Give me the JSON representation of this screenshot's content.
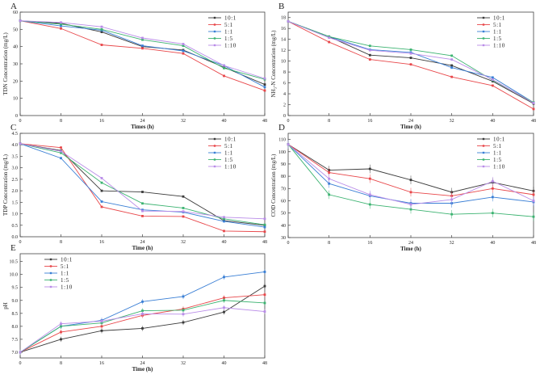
{
  "series_names": [
    "10:1",
    "5:1",
    "1:1",
    "1:5",
    "1:10"
  ],
  "colors": [
    "#3a3a3a",
    "#e8474a",
    "#3a7fd5",
    "#3cb371",
    "#b98ce8"
  ],
  "chart_data": [
    {
      "panel": "A",
      "type": "line",
      "xlabel": "Times (h)",
      "ylabel": "TDN Concentration (mg/L)",
      "x": [
        0,
        8,
        16,
        24,
        32,
        40,
        48
      ],
      "xlim": [
        0,
        48
      ],
      "ylim": [
        0,
        60
      ],
      "yticks": [
        0,
        10,
        20,
        30,
        40,
        50,
        60
      ],
      "ytick_labels": [
        "0",
        "10",
        "20",
        "30",
        "40",
        "50",
        "60"
      ],
      "legend": "top-right",
      "error_bar": 0.6,
      "series": [
        {
          "name": "10:1",
          "values": [
            55,
            53.5,
            48.5,
            40,
            38,
            28,
            18
          ]
        },
        {
          "name": "5:1",
          "values": [
            55,
            50.5,
            41,
            39,
            36,
            23,
            14.5
          ]
        },
        {
          "name": "1:1",
          "values": [
            55,
            52,
            49.5,
            40.5,
            37.5,
            29,
            16.5
          ]
        },
        {
          "name": "1:5",
          "values": [
            55,
            53,
            50,
            44,
            40.5,
            27.5,
            21
          ]
        },
        {
          "name": "1:10",
          "values": [
            55,
            54,
            51.5,
            45,
            41.5,
            29,
            21.5
          ]
        }
      ]
    },
    {
      "panel": "B",
      "type": "line",
      "xlabel": "Time (h)",
      "ylabel": "NH₃-N Concentration (mg/L)",
      "x": [
        0,
        8,
        16,
        24,
        32,
        40,
        48
      ],
      "xlim": [
        0,
        48
      ],
      "ylim": [
        0,
        19
      ],
      "yticks": [
        0,
        2,
        4,
        6,
        8,
        10,
        12,
        14,
        16,
        18
      ],
      "ytick_labels": [
        "0",
        "2",
        "4",
        "6",
        "8",
        "10",
        "12",
        "14",
        "16",
        "18"
      ],
      "legend": "top-right",
      "error_bar": 0.2,
      "series": [
        {
          "name": "10:1",
          "values": [
            17.3,
            14.5,
            11.1,
            10.6,
            9.2,
            6.3,
            2.2
          ]
        },
        {
          "name": "5:1",
          "values": [
            17.3,
            13.5,
            10.3,
            9.4,
            7.1,
            5.5,
            1.2
          ]
        },
        {
          "name": "1:1",
          "values": [
            17.3,
            14.5,
            12.1,
            11.6,
            8.8,
            7.0,
            2.4
          ]
        },
        {
          "name": "1:5",
          "values": [
            17.3,
            14.5,
            12.8,
            12.1,
            11.0,
            6.5,
            2.4
          ]
        },
        {
          "name": "1:10",
          "values": [
            17.3,
            14.3,
            12.0,
            11.4,
            10.3,
            6.6,
            2.3
          ]
        }
      ]
    },
    {
      "panel": "C",
      "type": "line",
      "xlabel": "Time (h)",
      "ylabel": "TDP Concentration (mg/L)",
      "x": [
        0,
        8,
        16,
        24,
        32,
        40,
        48
      ],
      "xlim": [
        0,
        48
      ],
      "ylim": [
        0,
        4.5
      ],
      "yticks": [
        0,
        0.5,
        1,
        1.5,
        2,
        2.5,
        3,
        3.5,
        4,
        4.5
      ],
      "ytick_labels": [
        "0.0",
        "0.5",
        "1.0",
        "1.5",
        "2.0",
        "2.5",
        "3.0",
        "3.5",
        "4.0",
        "4.5"
      ],
      "legend": "top-right",
      "error_bar": 0.04,
      "series": [
        {
          "name": "10:1",
          "values": [
            4.05,
            3.75,
            2.0,
            1.95,
            1.75,
            0.7,
            0.5
          ]
        },
        {
          "name": "5:1",
          "values": [
            4.05,
            3.88,
            1.3,
            0.9,
            0.88,
            0.25,
            0.22
          ]
        },
        {
          "name": "1:1",
          "values": [
            4.05,
            3.42,
            1.53,
            1.17,
            1.07,
            0.67,
            0.42
          ]
        },
        {
          "name": "1:5",
          "values": [
            4.05,
            3.65,
            2.35,
            1.45,
            1.25,
            0.78,
            0.52
          ]
        },
        {
          "name": "1:10",
          "values": [
            4.05,
            3.72,
            2.55,
            1.12,
            1.1,
            0.85,
            0.78
          ]
        }
      ]
    },
    {
      "panel": "D",
      "type": "line",
      "xlabel": "Time (h)",
      "ylabel": "COD Concentration (mg/L)",
      "x": [
        0,
        8,
        16,
        24,
        32,
        40,
        48
      ],
      "xlim": [
        0,
        48
      ],
      "ylim": [
        30,
        115
      ],
      "yticks": [
        30,
        40,
        50,
        60,
        70,
        80,
        90,
        100,
        110
      ],
      "ytick_labels": [
        "30",
        "40",
        "50",
        "60",
        "70",
        "80",
        "90",
        "100",
        "110"
      ],
      "legend": "top-right",
      "error_bar": 3.5,
      "series": [
        {
          "name": "10:1",
          "values": [
            106,
            85,
            86,
            77,
            67,
            75,
            68
          ]
        },
        {
          "name": "5:1",
          "values": [
            106,
            83,
            78,
            67,
            64,
            70,
            65
          ]
        },
        {
          "name": "1:1",
          "values": [
            106,
            74,
            64,
            58,
            58,
            63,
            59
          ]
        },
        {
          "name": "1:5",
          "values": [
            106,
            65,
            57,
            53,
            49,
            50,
            47
          ]
        },
        {
          "name": "1:10",
          "values": [
            106,
            78,
            65,
            57,
            61,
            76,
            60
          ]
        }
      ]
    },
    {
      "panel": "E",
      "type": "line",
      "xlabel": "Time (h)",
      "ylabel": "pH",
      "x": [
        0,
        8,
        16,
        24,
        32,
        40,
        48
      ],
      "xlim": [
        0,
        48
      ],
      "ylim": [
        6.78,
        10.8
      ],
      "yticks": [
        7,
        7.5,
        8,
        8.5,
        9,
        9.5,
        10,
        10.5
      ],
      "ytick_labels": [
        "7.0",
        "7.5",
        "8.0",
        "8.5",
        "9.0",
        "9.5",
        "10.0",
        "10.5"
      ],
      "legend": "top-left",
      "error_bar": 0.1,
      "series": [
        {
          "name": "10:1",
          "values": [
            7.0,
            7.5,
            7.83,
            7.92,
            8.15,
            8.55,
            9.55
          ]
        },
        {
          "name": "5:1",
          "values": [
            7.0,
            7.78,
            8.0,
            8.42,
            8.67,
            9.1,
            9.22
          ]
        },
        {
          "name": "1:1",
          "values": [
            7.0,
            8.0,
            8.23,
            8.95,
            9.15,
            9.9,
            10.1
          ]
        },
        {
          "name": "1:5",
          "values": [
            7.0,
            8.0,
            8.13,
            8.6,
            8.62,
            9.0,
            8.9
          ]
        },
        {
          "name": "1:10",
          "values": [
            7.0,
            8.1,
            8.2,
            8.48,
            8.47,
            8.72,
            8.57
          ]
        }
      ]
    }
  ]
}
